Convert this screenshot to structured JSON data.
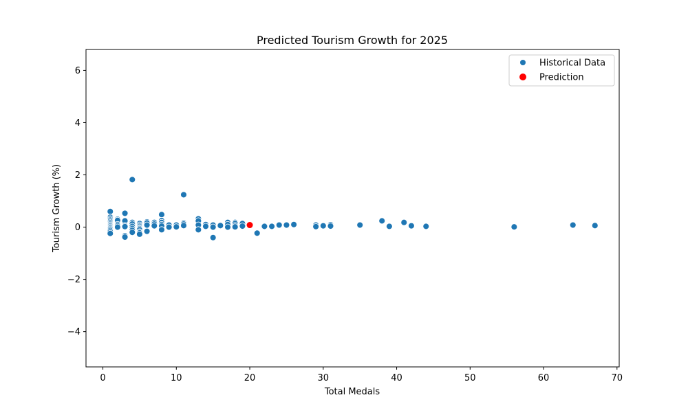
{
  "chart_data": {
    "type": "scatter",
    "title": "Predicted Tourism Growth for 2025",
    "xlabel": "Total Medals",
    "ylabel": "Tourism Growth (%)",
    "xlim": [
      -2.3,
      70.3
    ],
    "ylim": [
      -5.35,
      6.8
    ],
    "x_ticks": [
      0,
      10,
      20,
      30,
      40,
      50,
      60,
      70
    ],
    "y_ticks": [
      -4,
      -2,
      0,
      2,
      4,
      6
    ],
    "y_tick_labels": [
      "−4",
      "−2",
      "0",
      "2",
      "4",
      "6"
    ],
    "grid": false,
    "legend_position": "top-right",
    "series": [
      {
        "name": "Historical Data",
        "color": "#1f77b4",
        "points": [
          [
            1,
            0.6
          ],
          [
            1,
            0.38
          ],
          [
            1,
            0.32
          ],
          [
            1,
            0.27
          ],
          [
            1,
            0.22
          ],
          [
            1,
            0.17
          ],
          [
            1,
            0.12
          ],
          [
            1,
            0.08
          ],
          [
            1,
            0.04
          ],
          [
            1,
            0.0
          ],
          [
            1,
            -0.04
          ],
          [
            1,
            -0.08
          ],
          [
            1,
            -0.13
          ],
          [
            1,
            -0.18
          ],
          [
            1,
            -0.24
          ],
          [
            2,
            0.3
          ],
          [
            2,
            0.26
          ],
          [
            2,
            0.1
          ],
          [
            2,
            0.05
          ],
          [
            2,
            0.0
          ],
          [
            3,
            0.53
          ],
          [
            3,
            0.24
          ],
          [
            3,
            0.06
          ],
          [
            3,
            0.02
          ],
          [
            3,
            -0.33
          ],
          [
            3,
            -0.38
          ],
          [
            4,
            1.82
          ],
          [
            4,
            0.18
          ],
          [
            4,
            0.12
          ],
          [
            4,
            0.03
          ],
          [
            4,
            -0.05
          ],
          [
            4,
            -0.12
          ],
          [
            4,
            -0.2
          ],
          [
            5,
            0.14
          ],
          [
            5,
            0.08
          ],
          [
            5,
            0.03
          ],
          [
            5,
            -0.02
          ],
          [
            5,
            -0.06
          ],
          [
            5,
            -0.1
          ],
          [
            5,
            -0.18
          ],
          [
            5,
            -0.22
          ],
          [
            5,
            -0.27
          ],
          [
            6,
            0.2
          ],
          [
            6,
            0.16
          ],
          [
            6,
            0.08
          ],
          [
            6,
            -0.16
          ],
          [
            7,
            0.18
          ],
          [
            7,
            0.12
          ],
          [
            7,
            0.05
          ],
          [
            8,
            0.48
          ],
          [
            8,
            0.25
          ],
          [
            8,
            0.18
          ],
          [
            8,
            0.1
          ],
          [
            8,
            0.04
          ],
          [
            8,
            -0.1
          ],
          [
            9,
            0.08
          ],
          [
            9,
            0.0
          ],
          [
            10,
            0.08
          ],
          [
            10,
            0.01
          ],
          [
            11,
            1.24
          ],
          [
            11,
            0.16
          ],
          [
            11,
            0.12
          ],
          [
            11,
            0.06
          ],
          [
            13,
            0.32
          ],
          [
            13,
            0.24
          ],
          [
            13,
            0.08
          ],
          [
            13,
            -0.1
          ],
          [
            14,
            0.1
          ],
          [
            14,
            0.03
          ],
          [
            15,
            0.08
          ],
          [
            15,
            0.0
          ],
          [
            15,
            -0.4
          ],
          [
            16,
            0.06
          ],
          [
            17,
            0.18
          ],
          [
            17,
            0.1
          ],
          [
            17,
            0.0
          ],
          [
            18,
            0.18
          ],
          [
            18,
            0.14
          ],
          [
            18,
            0.06
          ],
          [
            18,
            0.01
          ],
          [
            19,
            0.14
          ],
          [
            19,
            0.04
          ],
          [
            21,
            -0.23
          ],
          [
            22,
            0.03
          ],
          [
            23,
            0.03
          ],
          [
            24,
            0.08
          ],
          [
            25,
            0.08
          ],
          [
            26,
            0.1
          ],
          [
            29,
            0.08
          ],
          [
            29,
            0.02
          ],
          [
            30,
            0.05
          ],
          [
            31,
            0.09
          ],
          [
            31,
            0.04
          ],
          [
            35,
            0.08
          ],
          [
            38,
            0.24
          ],
          [
            39,
            0.03
          ],
          [
            41,
            0.18
          ],
          [
            42,
            0.05
          ],
          [
            44,
            0.03
          ],
          [
            56,
            0.01
          ],
          [
            64,
            0.08
          ],
          [
            67,
            0.06
          ]
        ]
      },
      {
        "name": "Prediction",
        "color": "#ff0000",
        "points": [
          [
            20,
            0.08
          ]
        ]
      }
    ]
  }
}
